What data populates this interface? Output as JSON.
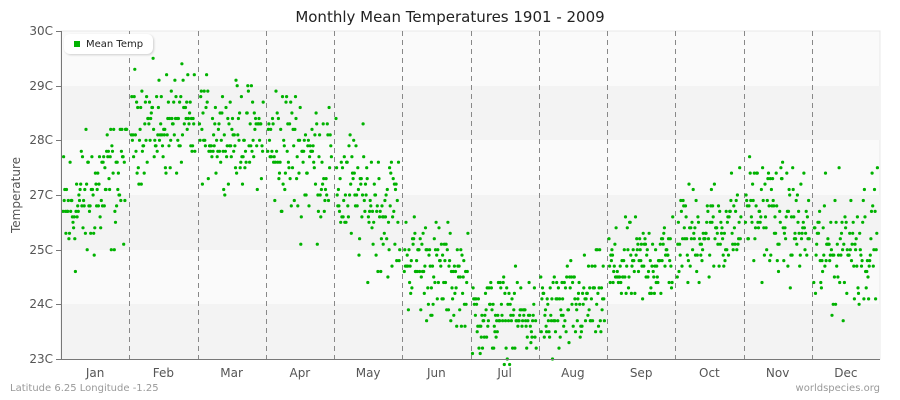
{
  "chart_data": {
    "type": "scatter",
    "title": "Monthly Mean Temperatures 1901 - 2009",
    "xlabel": "",
    "ylabel": "Temperature",
    "y_tick_labels": [
      "30C",
      "29C",
      "28C",
      "27C",
      "25C",
      "24C",
      "23C"
    ],
    "ylim": [
      23,
      30
    ],
    "categories": [
      "Jan",
      "Feb",
      "Mar",
      "Apr",
      "May",
      "Jun",
      "Jul",
      "Aug",
      "Sep",
      "Oct",
      "Nov",
      "Dec"
    ],
    "legend": [
      {
        "name": "Mean Temp",
        "color": "#00b200"
      }
    ],
    "legend_position": "top-left",
    "grid": "horizontal bands, dashed vertical month separators",
    "series": [
      {
        "name": "Mean Temp",
        "color": "#00b200",
        "years": "1901-2009",
        "points_per_month": 109,
        "monthly_summary": [
          {
            "month": "Jan",
            "mean": 26.6,
            "min": 24.4,
            "max": 28.2
          },
          {
            "month": "Feb",
            "mean": 28.3,
            "min": 26.9,
            "max": 29.7
          },
          {
            "month": "Mar",
            "mean": 28.2,
            "min": 27.0,
            "max": 29.6
          },
          {
            "month": "Apr",
            "mean": 27.9,
            "min": 25.4,
            "max": 29.1
          },
          {
            "month": "May",
            "mean": 27.2,
            "min": 25.0,
            "max": 28.4
          },
          {
            "month": "Jun",
            "mean": 25.9,
            "min": 24.6,
            "max": 27.3
          },
          {
            "month": "Jul",
            "mean": 24.8,
            "min": 23.6,
            "max": 25.8
          },
          {
            "month": "Aug",
            "mean": 24.7,
            "min": 23.5,
            "max": 26.0
          },
          {
            "month": "Sep",
            "mean": 25.6,
            "min": 24.4,
            "max": 26.7
          },
          {
            "month": "Oct",
            "mean": 26.2,
            "min": 24.9,
            "max": 27.6
          },
          {
            "month": "Nov",
            "mean": 26.8,
            "min": 25.3,
            "max": 28.3
          },
          {
            "month": "Dec",
            "mean": 25.9,
            "min": 24.4,
            "max": 27.9
          }
        ]
      }
    ]
  },
  "footer": {
    "location": "Latitude 6.25 Longitude -1.25",
    "source": "worldspecies.org"
  }
}
